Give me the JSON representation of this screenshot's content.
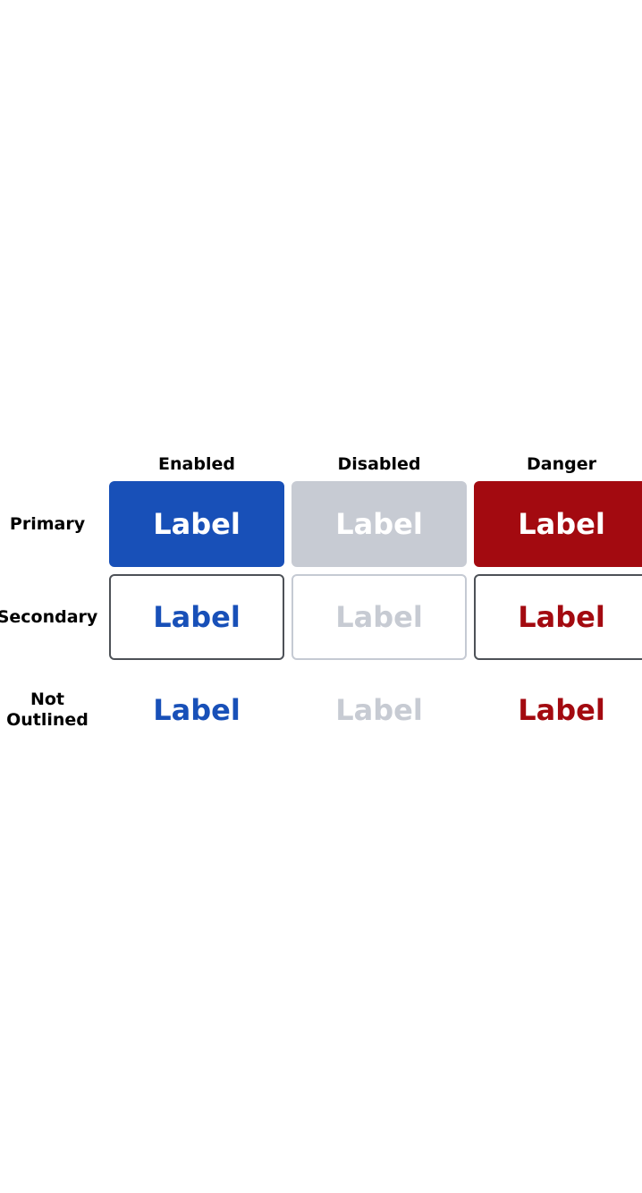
{
  "colors": {
    "accent": "#1850b8",
    "disabled": "#c7cbd3",
    "danger": "#a30a10",
    "on_fill": "#ffffff",
    "outline": "#4d5157",
    "outline_disabled": "#c5cad3"
  },
  "columns": {
    "enabled": "Enabled",
    "disabled": "Disabled",
    "danger": "Danger"
  },
  "rows": {
    "primary": "Primary",
    "secondary": "Secondary",
    "not_outlined": "Not\nOutlined"
  },
  "buttons": {
    "primary_enabled": "Label",
    "primary_disabled": "Label",
    "primary_danger": "Label",
    "secondary_enabled": "Label",
    "secondary_disabled": "Label",
    "secondary_danger": "Label",
    "plain_enabled": "Label",
    "plain_disabled": "Label",
    "plain_danger": "Label"
  }
}
